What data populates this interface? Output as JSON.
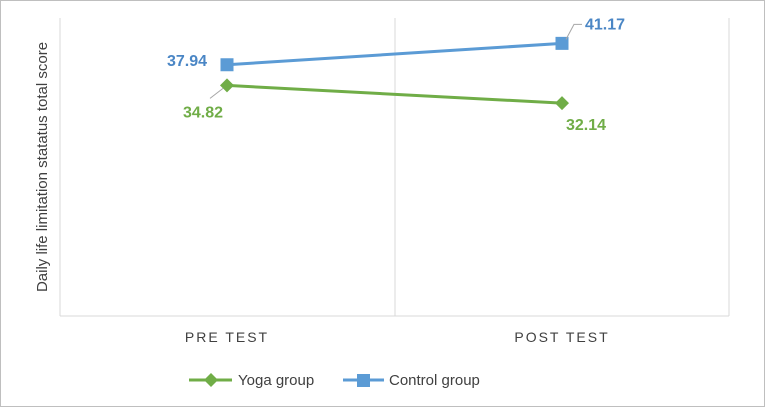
{
  "chart_data": {
    "type": "line",
    "categories": [
      "PRE TEST",
      "POST TEST"
    ],
    "ylabel": "Daily life limitation statatus total score",
    "ylim": [
      0,
      45
    ],
    "grid": "vertical",
    "legend_position": "bottom",
    "series": [
      {
        "name": "Yoga group",
        "values": [
          34.82,
          32.14
        ],
        "labels": [
          "34.82",
          "32.14"
        ],
        "color": "#70ad47",
        "marker": "diamond"
      },
      {
        "name": "Control group",
        "values": [
          37.94,
          41.17
        ],
        "labels": [
          "37.94",
          "41.17"
        ],
        "color": "#5b9bd5",
        "marker": "square"
      }
    ]
  }
}
